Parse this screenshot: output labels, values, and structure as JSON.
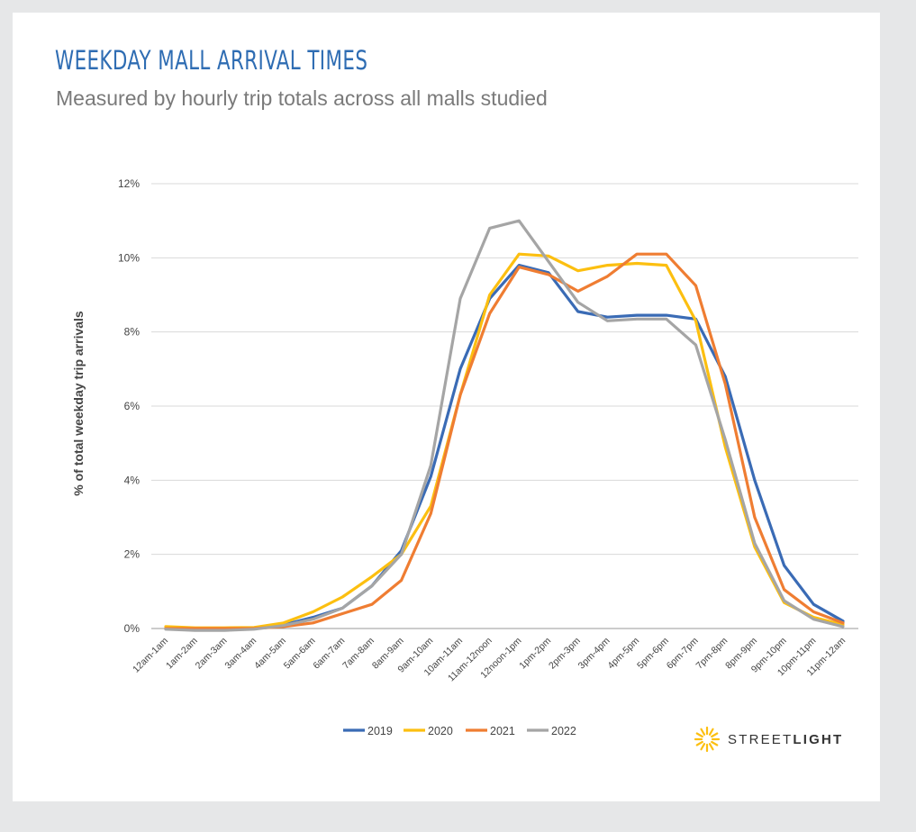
{
  "chart_data": {
    "type": "line",
    "title": "WEEKDAY MALL ARRIVAL TIMES",
    "subtitle": "Measured by hourly trip totals across all malls studied",
    "ylabel": "% of total weekday trip arrivals",
    "xlabel": "",
    "ylim": [
      0,
      12
    ],
    "yticks": [
      0,
      2,
      4,
      6,
      8,
      10,
      12
    ],
    "ytick_labels": [
      "0%",
      "2%",
      "4%",
      "6%",
      "8%",
      "10%",
      "12%"
    ],
    "grid": true,
    "legend_position": "bottom-center",
    "categories": [
      "12am-1am",
      "1am-2am",
      "2am-3am",
      "3am-4am",
      "4am-5am",
      "5am-6am",
      "6am-7am",
      "7am-8am",
      "8am-9am",
      "9am-10am",
      "10am-11am",
      "11am-12noon",
      "12noon-1pm",
      "1pm-2pm",
      "2pm-3pm",
      "3pm-4pm",
      "4pm-5pm",
      "5pm-6pm",
      "6pm-7pm",
      "7pm-8pm",
      "8pm-9pm",
      "9pm-10pm",
      "10pm-11pm",
      "11pm-12am"
    ],
    "series": [
      {
        "name": "2019",
        "color": "#3a6bb5",
        "values": [
          0.0,
          0.0,
          0.0,
          0.0,
          0.1,
          0.3,
          0.55,
          1.15,
          2.1,
          4.1,
          7.0,
          8.9,
          9.8,
          9.6,
          8.55,
          8.4,
          8.45,
          8.45,
          8.35,
          6.8,
          4.0,
          1.7,
          0.65,
          0.2
        ]
      },
      {
        "name": "2020",
        "color": "#fcbf10",
        "values": [
          0.05,
          0.02,
          0.02,
          0.03,
          0.15,
          0.45,
          0.85,
          1.4,
          2.0,
          3.3,
          6.3,
          9.0,
          10.1,
          10.05,
          9.65,
          9.8,
          9.85,
          9.8,
          8.3,
          4.9,
          2.2,
          0.7,
          0.3,
          0.1
        ]
      },
      {
        "name": "2021",
        "color": "#ef7d32",
        "values": [
          0.0,
          0.0,
          0.0,
          0.0,
          0.05,
          0.15,
          0.4,
          0.65,
          1.3,
          3.1,
          6.3,
          8.5,
          9.75,
          9.55,
          9.1,
          9.5,
          10.1,
          10.1,
          9.25,
          6.6,
          3.0,
          1.05,
          0.45,
          0.15
        ]
      },
      {
        "name": "2022",
        "color": "#a5a5a5",
        "values": [
          -0.02,
          -0.05,
          -0.05,
          -0.02,
          0.08,
          0.25,
          0.55,
          1.15,
          2.0,
          4.4,
          8.9,
          10.8,
          11.0,
          9.9,
          8.8,
          8.3,
          8.35,
          8.35,
          7.65,
          5.1,
          2.3,
          0.75,
          0.25,
          0.05
        ]
      }
    ]
  },
  "brand": {
    "name_light": "STREET",
    "name_bold": "LIGHT"
  }
}
